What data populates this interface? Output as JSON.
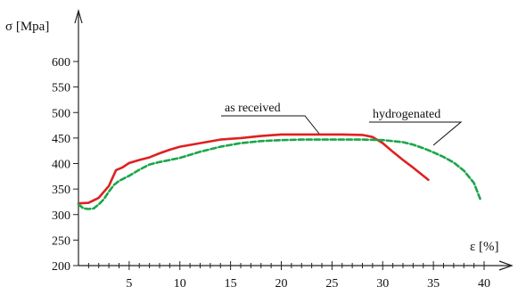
{
  "chart_data": {
    "type": "line",
    "title": "",
    "ylabel": "σ [Mpa]",
    "xlabel": "ε [%]",
    "xlim": [
      0,
      40
    ],
    "ylim": [
      200,
      600
    ],
    "xticks": [
      "5",
      "10",
      "15",
      "20",
      "25",
      "30",
      "35",
      "40"
    ],
    "xtick_values": [
      5,
      10,
      15,
      20,
      25,
      30,
      35,
      40
    ],
    "xminor_step": 1,
    "yticks": [
      "200",
      "250",
      "300",
      "350",
      "400",
      "450",
      "500",
      "550",
      "600"
    ],
    "ytick_values": [
      200,
      250,
      300,
      350,
      400,
      450,
      500,
      550,
      600
    ],
    "grid": false,
    "series": [
      {
        "name": "as received",
        "color": "#e02020",
        "dash": "solid",
        "x": [
          0,
          1,
          2,
          3,
          3.7,
          4.3,
          5,
          6,
          7,
          8,
          9,
          10,
          12,
          14,
          16,
          18,
          20,
          22,
          24,
          26,
          28,
          29,
          30,
          31,
          32,
          33,
          34.5
        ],
        "y": [
          322,
          323,
          333,
          356,
          387,
          392,
          401,
          407,
          412,
          420,
          427,
          433,
          440,
          447,
          450,
          454,
          457,
          457,
          457,
          457,
          456,
          452,
          440,
          423,
          407,
          392,
          368
        ]
      },
      {
        "name": "hydrogenated",
        "color": "#1aa64a",
        "dash": "dashed",
        "x": [
          0,
          0.5,
          1,
          1.5,
          2,
          2.5,
          3,
          3.5,
          4,
          5,
          6,
          7,
          8,
          9,
          10,
          12,
          14,
          16,
          18,
          20,
          22,
          24,
          26,
          28,
          30,
          32,
          33,
          34,
          35,
          36,
          37,
          38,
          39,
          39.6
        ],
        "y": [
          320,
          312,
          311,
          312,
          320,
          330,
          345,
          358,
          366,
          376,
          388,
          398,
          403,
          407,
          411,
          423,
          433,
          440,
          444,
          446,
          447,
          447,
          447,
          447,
          446,
          442,
          437,
          430,
          422,
          413,
          402,
          386,
          362,
          331
        ]
      }
    ],
    "annotations": [
      {
        "text": "as received",
        "series": 0
      },
      {
        "text": "hydrogenated",
        "series": 1
      }
    ]
  }
}
